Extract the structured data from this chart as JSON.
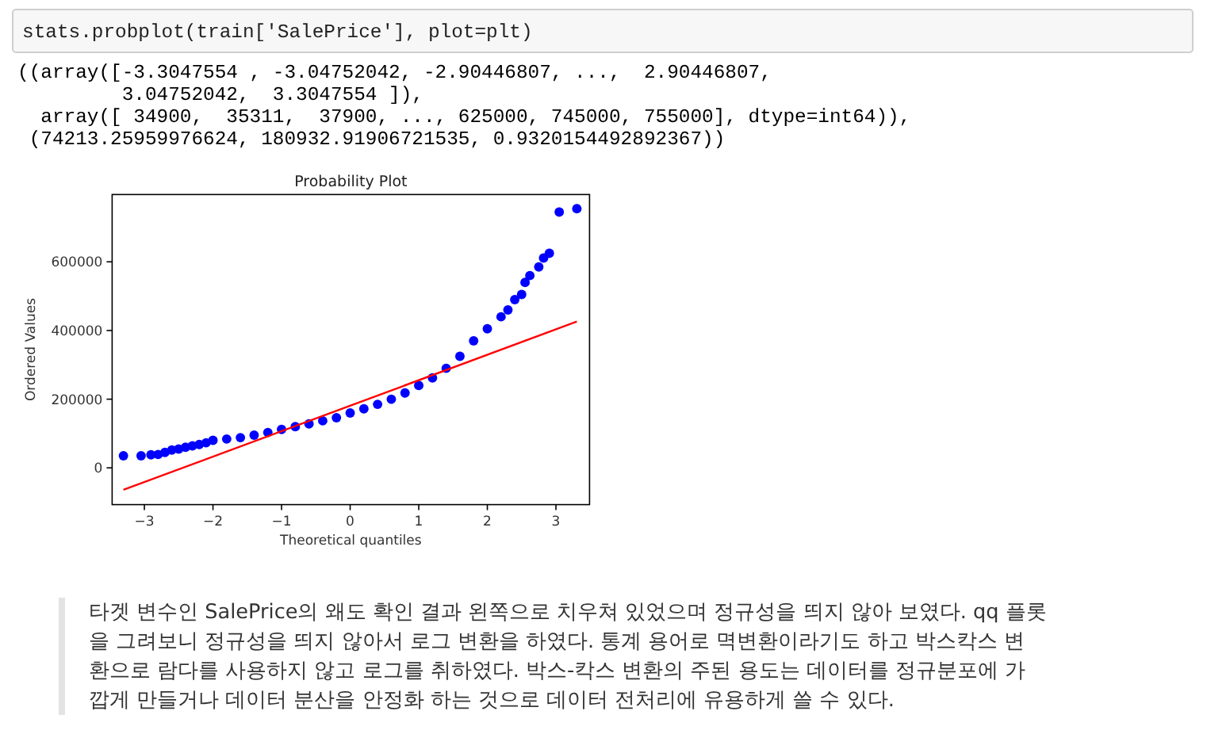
{
  "chart_data": {
    "type": "scatter",
    "title": "Probability Plot",
    "xlabel": "Theoretical quantiles",
    "ylabel": "Ordered Values",
    "xlim": [
      -3.47,
      3.49
    ],
    "ylim": [
      -107000,
      796000
    ],
    "xticks": [
      -3,
      -2,
      -1,
      0,
      1,
      2,
      3
    ],
    "yticks": [
      0,
      200000,
      400000,
      600000
    ],
    "grid": false,
    "marker": "circle",
    "series": [
      {
        "color": "#0000ff",
        "x": [
          -3.305,
          -3.048,
          -2.904,
          -2.8,
          -2.7,
          -2.6,
          -2.5,
          -2.4,
          -2.3,
          -2.2,
          -2.1,
          -2.0,
          -1.8,
          -1.6,
          -1.4,
          -1.2,
          -1.0,
          -0.8,
          -0.6,
          -0.4,
          -0.2,
          0,
          0.2,
          0.4,
          0.6,
          0.8,
          1.0,
          1.2,
          1.4,
          1.6,
          1.8,
          2.0,
          2.2,
          2.3,
          2.4,
          2.5,
          2.55,
          2.62,
          2.75,
          2.82,
          2.904,
          3.048,
          3.305
        ],
        "values": [
          35000,
          35000,
          38000,
          39000,
          45000,
          52000,
          55000,
          60000,
          64000,
          68000,
          73000,
          80000,
          84000,
          88000,
          95000,
          103000,
          112000,
          120000,
          128000,
          137000,
          146000,
          160000,
          172000,
          185000,
          200000,
          218000,
          240000,
          262000,
          290000,
          325000,
          370000,
          405000,
          440000,
          460000,
          490000,
          505000,
          540000,
          560000,
          585000,
          611000,
          625000,
          745000,
          755000
        ]
      },
      {
        "type": "line",
        "marker": "none",
        "color": "#ff0000",
        "x": [
          -3.305,
          3.305
        ],
        "values": [
          -64000,
          426000
        ]
      }
    ],
    "annotations": [
      "stats.probplot(train['SalePrice'], plot=plt)",
      "((array([-3.3047554 , -3.04752042, -2.90446807, ...,  2.90446807,",
      "         3.04752042,  3.3047554 ]),",
      "  array([ 34900,  35311,  37900, ..., 625000, 745000, 755000], dtype=int64)),",
      " (74213.25959976624, 180932.91906721535, 0.9320154492892367))",
      "타겟 변수인 SalePrice의 왜도 확인 결과 왼쪽으로 치우쳐 있었으며 정규성을 띄지 않아 보였다. qq 플롯",
      "을 그려보니 정규성을 띄지 않아서 로그 변환을 하였다. 통계 용어로 멱변환이라기도 하고 박스칵스 변",
      "환으로 람다를 사용하지 않고 로그를 취하였다. 박스-칵스 변환의 주된 용도는 데이터를 정규분포에 가",
      "깝게 만들거나 데이터 분산을 안정화 하는 것으로 데이터 전처리에 유용하게 쓸 수 있다."
    ]
  }
}
